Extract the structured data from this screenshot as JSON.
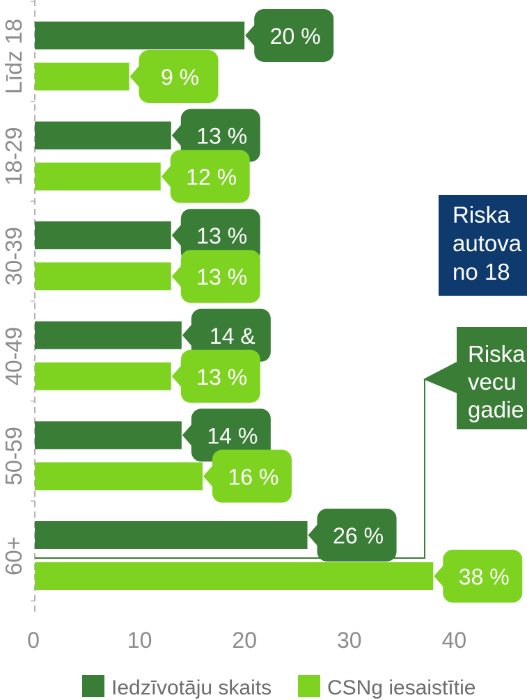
{
  "chart_data": {
    "type": "bar",
    "orientation": "horizontal",
    "categories": [
      "Līdz 18",
      "18-29",
      "30-39",
      "40-49",
      "50-59",
      "60+"
    ],
    "series": [
      {
        "name": "Iedzīvotāju skaits",
        "color": "#3a7d36",
        "values": [
          20,
          13,
          13,
          14,
          14,
          26
        ],
        "labels": [
          "20 %",
          "13 %",
          "13 %",
          "14 &",
          "14 %",
          "26 %"
        ]
      },
      {
        "name": "CSNg iesaistītie",
        "color": "#7ed321",
        "values": [
          9,
          12,
          13,
          13,
          16,
          38
        ],
        "labels": [
          "9 %",
          "12 %",
          "13 %",
          "13 %",
          "16 %",
          "38 %"
        ]
      }
    ],
    "xlim": [
      0,
      40
    ],
    "xticks": [
      "0",
      "10",
      "20",
      "30",
      "40"
    ],
    "grid": false,
    "legend_position": "bottom"
  },
  "callouts": [
    {
      "lines": [
        "Riska",
        "autova",
        "no 18"
      ],
      "color": "#0e3a6e"
    },
    {
      "lines": [
        "Riska",
        "vecu",
        "gadie"
      ],
      "color": "#3a7d36"
    }
  ]
}
